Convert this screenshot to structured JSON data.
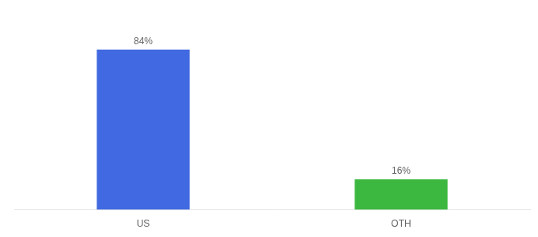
{
  "chart_data": {
    "type": "bar",
    "categories": [
      "US",
      "OTH"
    ],
    "values": [
      84,
      16
    ],
    "colors": [
      "#4169E1",
      "#3CB840"
    ],
    "ylim": [
      0,
      100
    ],
    "grid": false,
    "data_labels": true,
    "value_labels": [
      "84%",
      "16%"
    ],
    "tick_labels": "x"
  }
}
